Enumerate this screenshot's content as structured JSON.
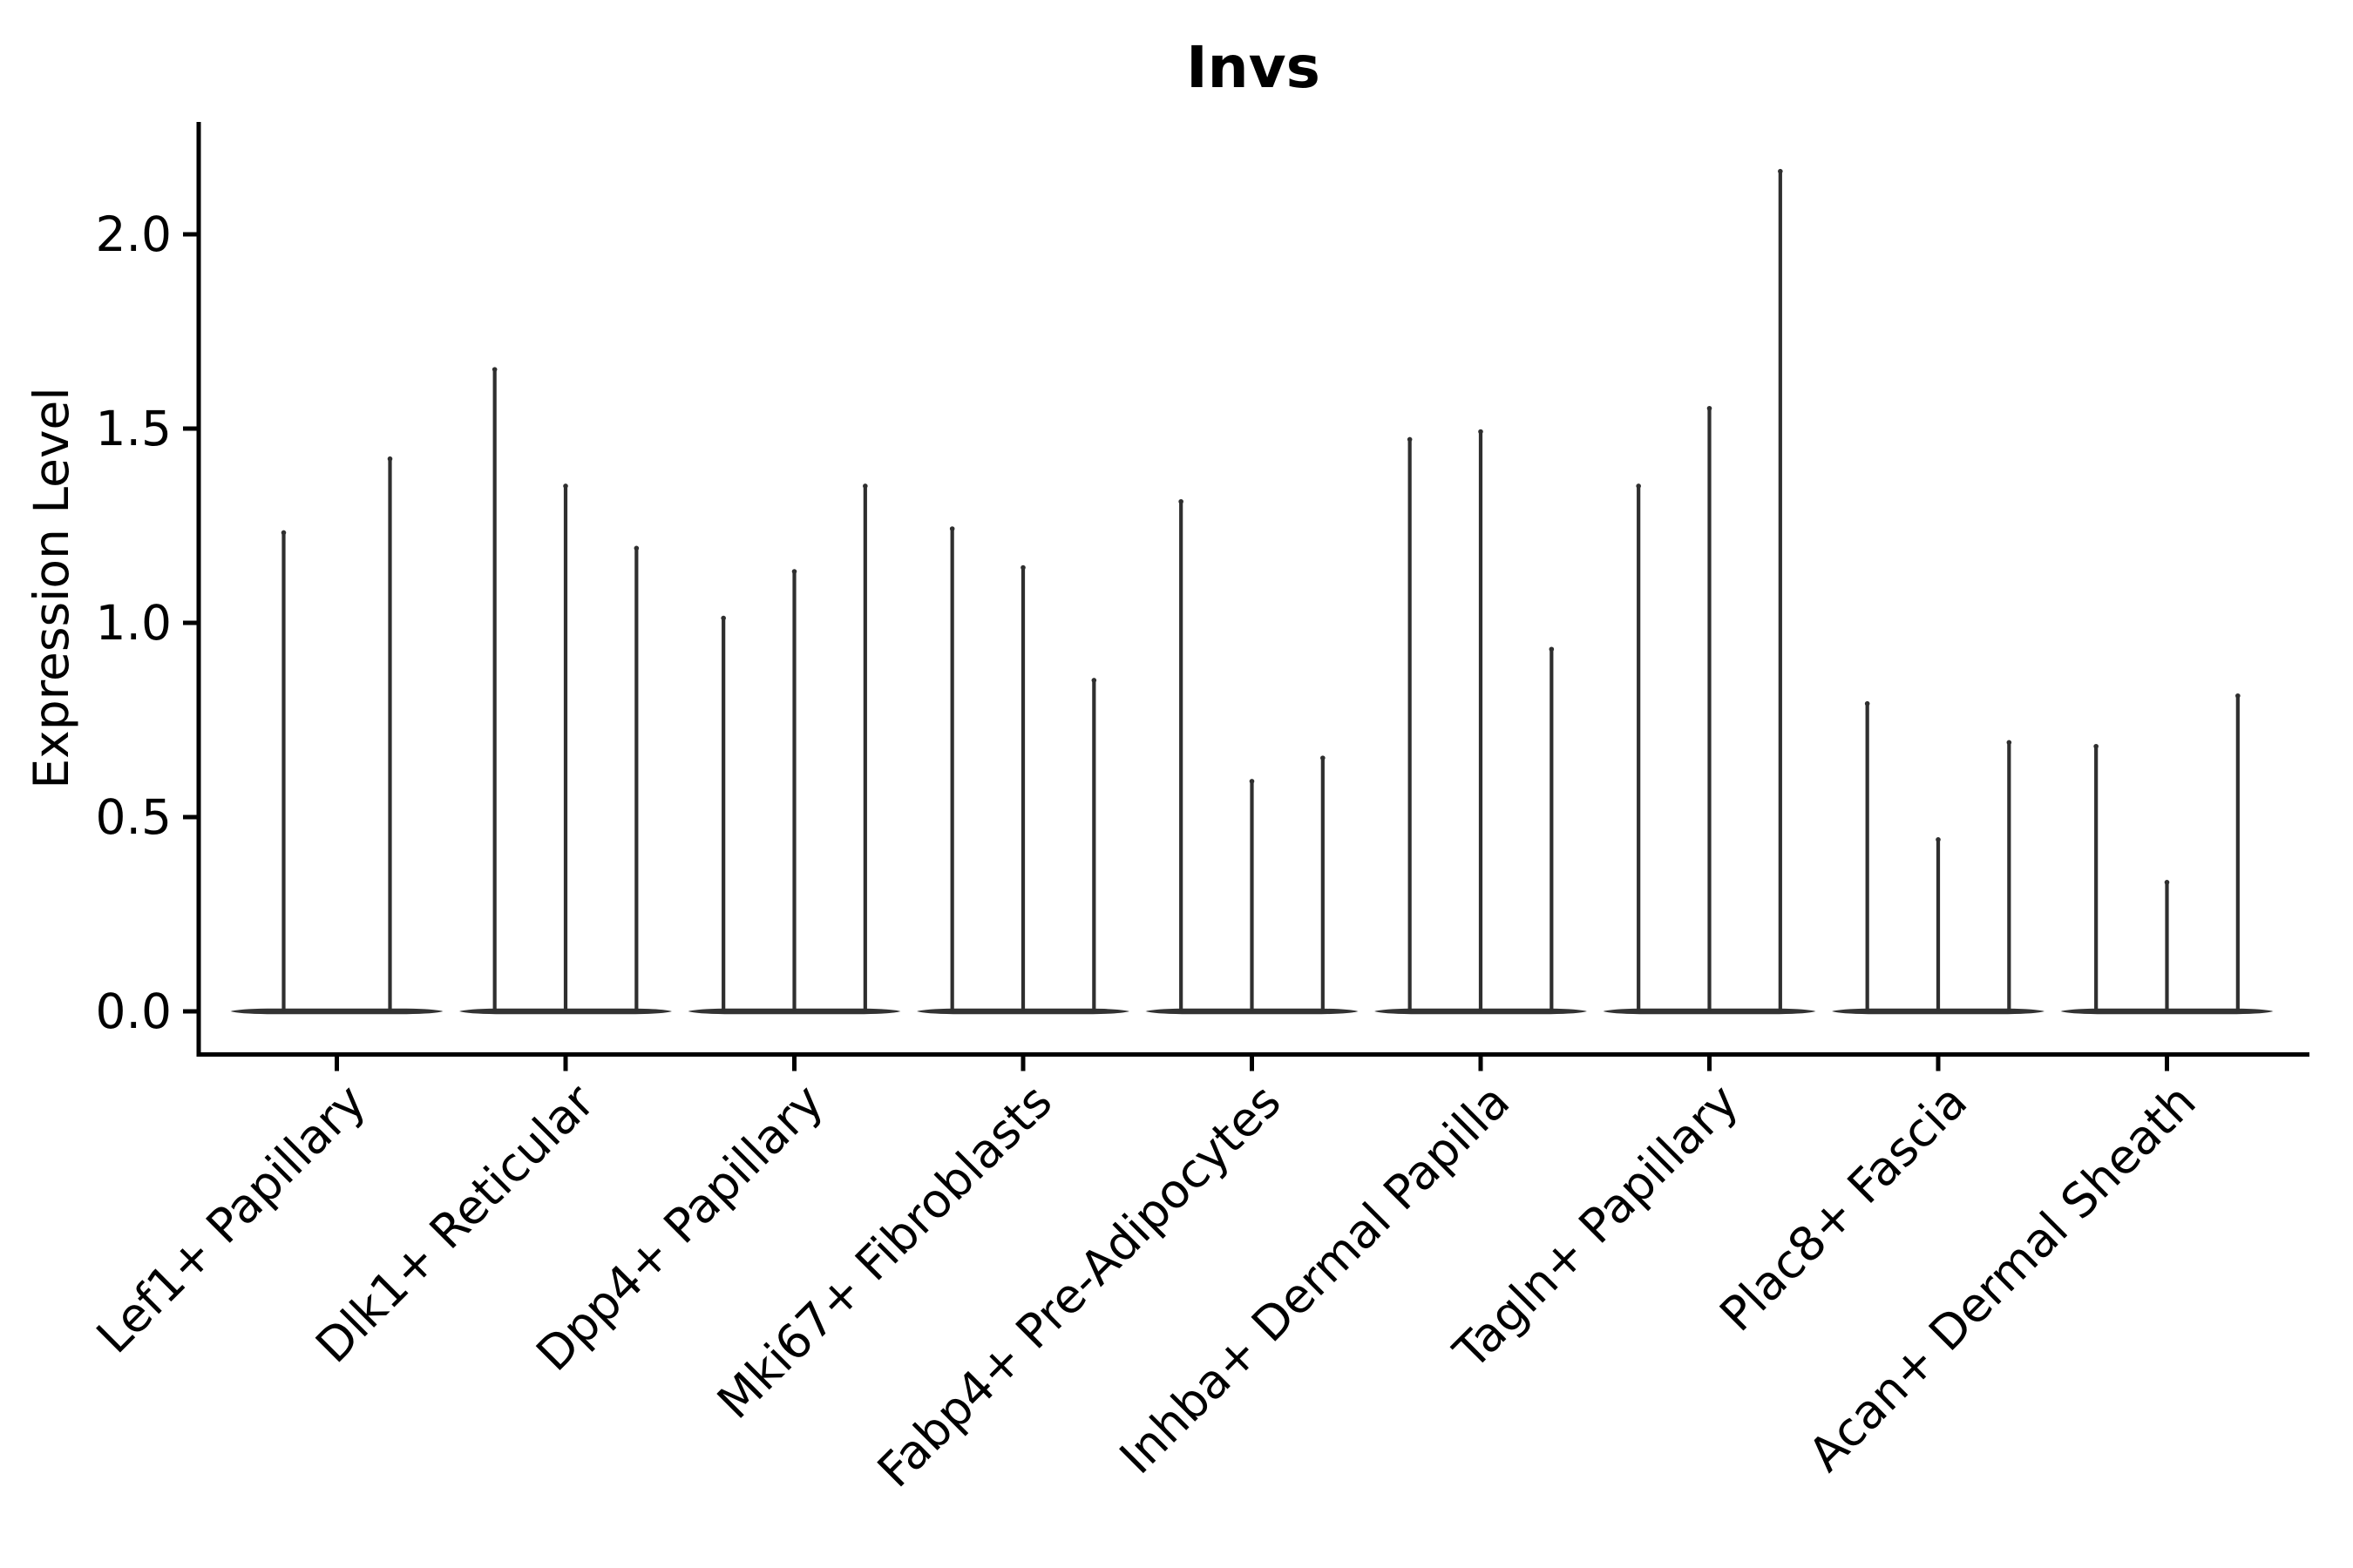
{
  "chart_data": {
    "type": "violin",
    "title": "Invs",
    "xlabel": "",
    "ylabel": "Expression Level",
    "categories": [
      "Lef1+ Papillary",
      "Dlk1+ Reticular",
      "Dpp4+ Papillary",
      "Mki67+ Fibroblasts",
      "Fabp4+ Pre-Adipocytes",
      "Inhba+ Dermal Papilla",
      "Tagln+ Papillary",
      "Plac8+ Fascia",
      "Acan+ Dermal Sheath"
    ],
    "series": [
      {
        "category": "Lef1+ Papillary",
        "violin_max_values": [
          1.24,
          1.43
        ]
      },
      {
        "category": "Dlk1+ Reticular",
        "violin_max_values": [
          1.66,
          1.36,
          1.2
        ]
      },
      {
        "category": "Dpp4+ Papillary",
        "violin_max_values": [
          1.02,
          1.14,
          1.36
        ]
      },
      {
        "category": "Mki67+ Fibroblasts",
        "violin_max_values": [
          1.25,
          1.15,
          0.86
        ]
      },
      {
        "category": "Fabp4+ Pre-Adipocytes",
        "violin_max_values": [
          1.32,
          0.6,
          0.66
        ]
      },
      {
        "category": "Inhba+ Dermal Papilla",
        "violin_max_values": [
          1.48,
          1.5,
          0.94
        ]
      },
      {
        "category": "Tagln+ Papillary",
        "violin_max_values": [
          1.36,
          1.56,
          2.17
        ]
      },
      {
        "category": "Plac8+ Fascia",
        "violin_max_values": [
          0.8,
          0.45,
          0.7
        ]
      },
      {
        "category": "Acan+ Dermal Sheath",
        "violin_max_values": [
          0.69,
          0.34,
          0.82
        ]
      }
    ],
    "violin_shape_note": "Each violin is a near-delta distribution at 0: a wide flat base at y=0 with a thin spike rising to its max value",
    "yticks": [
      0.0,
      0.5,
      1.0,
      1.5,
      2.0
    ],
    "ytick_labels": [
      "0.0",
      "0.5",
      "1.0",
      "1.5",
      "2.0"
    ],
    "ylim": [
      -0.11,
      2.29
    ],
    "grid": false,
    "legend": false,
    "colors": {
      "violin_fill": "#333333",
      "spike": "#2f2f2f",
      "axis": "#000000",
      "text": "#000000",
      "background": "#ffffff"
    }
  }
}
